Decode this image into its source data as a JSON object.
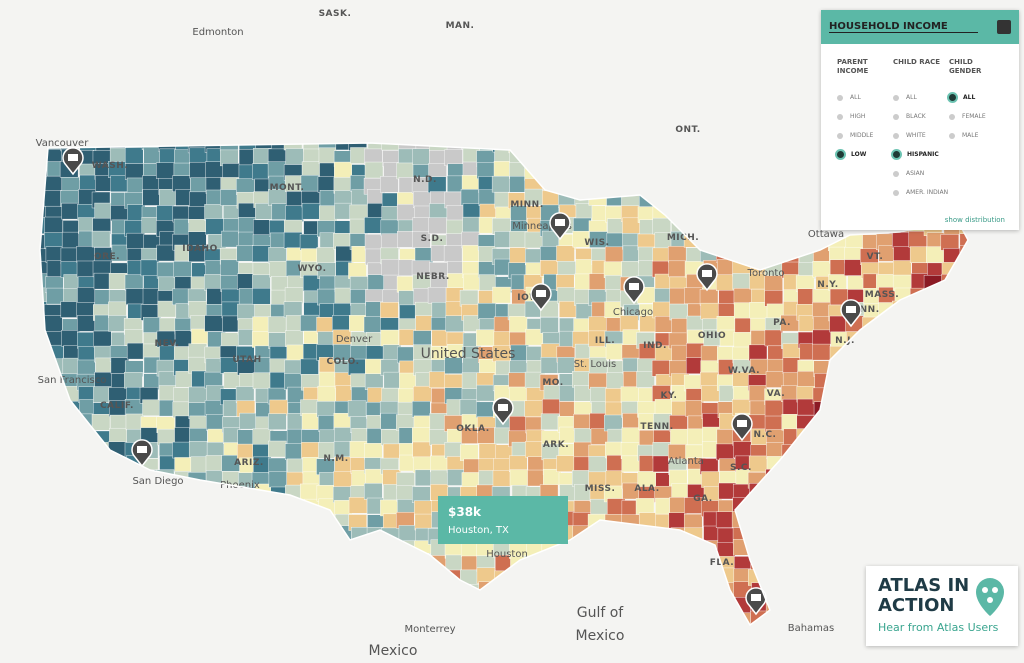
{
  "map_labels": [
    "SASK.",
    "MAN.",
    "Edmonton",
    "ONT.",
    "Vancouver",
    "WASH.",
    "MONT.",
    "N.D.",
    "MINN.",
    "ORE.",
    "IDAHO",
    "WYO.",
    "S.D.",
    "WIS.",
    "MICH.",
    "Ottawa",
    "Toronto",
    "N.Y.",
    "MASS.",
    "CONN.",
    "VT.",
    "Minneapolis",
    "NEBR.",
    "IOWA",
    "Chicago",
    "PA.",
    "N.J.",
    "NEV.",
    "UTAH",
    "Denver",
    "COLO.",
    "United States",
    "ILL.",
    "IND.",
    "OHIO",
    "San Francisco",
    "W.VA.",
    "MO.",
    "St. Louis",
    "KY.",
    "VA.",
    "CALIF.",
    "OKLA.",
    "TENN.",
    "N.C.",
    "ARK.",
    "ARIZ.",
    "N.M.",
    "Atlanta",
    "S.C.",
    "San Diego",
    "Phoenix",
    "MISS.",
    "ALA.",
    "GA.",
    "Houston",
    "FLA.",
    "Gulf of",
    "Mexico",
    "Monterrey",
    "Mexico",
    "Bahamas"
  ],
  "panel": {
    "title": "HOUSEHOLD INCOME",
    "columns": [
      {
        "heading": "PARENT INCOME",
        "options": [
          "ALL",
          "HIGH",
          "MIDDLE",
          "LOW"
        ],
        "selected": 3
      },
      {
        "heading": "CHILD RACE",
        "options": [
          "ALL",
          "BLACK",
          "WHITE",
          "HISPANIC",
          "ASIAN",
          "AMER. INDIAN"
        ],
        "selected": 3
      },
      {
        "heading": "CHILD GENDER",
        "options": [
          "ALL",
          "FEMALE",
          "MALE"
        ],
        "selected": 0
      }
    ],
    "link": "show distribution"
  },
  "tooltip": {
    "value": "$38k",
    "place": "Houston, TX"
  },
  "atlas": {
    "title": "ATLAS IN ACTION",
    "subtitle": "Hear from Atlas Users"
  }
}
